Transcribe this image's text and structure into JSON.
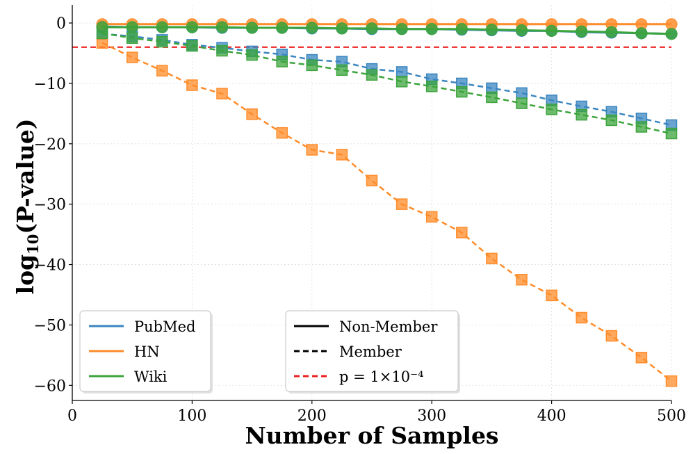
{
  "chart_data": {
    "type": "line",
    "title": "",
    "xlabel": "Number of Samples",
    "ylabel_main": "log",
    "ylabel_sub": "10",
    "ylabel_rest": "(P-value)",
    "xlim": [
      0,
      500
    ],
    "ylim": [
      -62.5,
      3
    ],
    "xticks": [
      0,
      100,
      200,
      300,
      400,
      500
    ],
    "xtick_labels": [
      "0",
      "100",
      "200",
      "300",
      "400",
      "500"
    ],
    "yticks": [
      0,
      -10,
      -20,
      -30,
      -40,
      -50,
      -60
    ],
    "ytick_labels": [
      "0",
      "−10",
      "−20",
      "−30",
      "−40",
      "−50",
      "−60"
    ],
    "grid": true,
    "x": [
      25,
      50,
      75,
      100,
      125,
      150,
      175,
      200,
      225,
      250,
      275,
      300,
      325,
      350,
      375,
      400,
      425,
      450,
      475,
      500
    ],
    "threshold": {
      "label": "p = 1×10⁻⁴",
      "value": -4,
      "color": "#ee2222"
    },
    "datasets_legend": [
      {
        "name": "PubMed",
        "color": "#3a86c0"
      },
      {
        "name": "HN",
        "color": "#ff8c2a"
      },
      {
        "name": "Wiki",
        "color": "#3ca43c"
      }
    ],
    "style_legend": [
      {
        "name": "Non-Member",
        "dash": "solid"
      },
      {
        "name": "Member",
        "dash": "dashed"
      }
    ],
    "series": [
      {
        "name": "PubMed Non-Member",
        "dataset": "PubMed",
        "kind": "non-member",
        "color": "#3a86c0",
        "values": [
          -0.6,
          -0.7,
          -0.7,
          -0.7,
          -0.8,
          -0.8,
          -0.8,
          -0.9,
          -0.9,
          -1.0,
          -1.0,
          -1.0,
          -1.1,
          -1.2,
          -1.3,
          -1.3,
          -1.5,
          -1.6,
          -1.7,
          -1.8
        ]
      },
      {
        "name": "HN Non-Member",
        "dataset": "HN",
        "kind": "non-member",
        "color": "#ff8c2a",
        "values": [
          -0.2,
          -0.2,
          -0.2,
          -0.2,
          -0.2,
          -0.2,
          -0.2,
          -0.2,
          -0.2,
          -0.2,
          -0.2,
          -0.2,
          -0.2,
          -0.2,
          -0.2,
          -0.2,
          -0.2,
          -0.2,
          -0.2,
          -0.2
        ]
      },
      {
        "name": "Wiki Non-Member",
        "dataset": "Wiki",
        "kind": "non-member",
        "color": "#3ca43c",
        "values": [
          -0.7,
          -0.7,
          -0.7,
          -0.7,
          -0.7,
          -0.8,
          -0.8,
          -0.8,
          -0.9,
          -0.9,
          -1.0,
          -1.0,
          -1.0,
          -1.1,
          -1.2,
          -1.3,
          -1.4,
          -1.5,
          -1.7,
          -1.8
        ]
      },
      {
        "name": "PubMed Member",
        "dataset": "PubMed",
        "kind": "member",
        "color": "#3a86c0",
        "values": [
          -1.8,
          -2.2,
          -2.8,
          -3.6,
          -4.1,
          -4.7,
          -5.2,
          -6.1,
          -6.4,
          -7.6,
          -8.1,
          -9.3,
          -10.0,
          -10.8,
          -11.6,
          -12.8,
          -13.8,
          -14.7,
          -15.8,
          -16.9
        ]
      },
      {
        "name": "HN Member",
        "dataset": "HN",
        "kind": "member",
        "color": "#ff8c2a",
        "values": [
          -3.3,
          -5.7,
          -7.9,
          -10.3,
          -11.7,
          -15.1,
          -18.2,
          -21.0,
          -21.8,
          -26.1,
          -30.0,
          -32.1,
          -34.7,
          -39.0,
          -42.5,
          -45.1,
          -48.8,
          -51.8,
          -55.4,
          -59.3
        ]
      },
      {
        "name": "Wiki Member",
        "dataset": "Wiki",
        "kind": "member",
        "color": "#3ca43c",
        "values": [
          -1.7,
          -2.5,
          -3.1,
          -3.8,
          -4.6,
          -5.3,
          -6.4,
          -7.0,
          -7.8,
          -8.6,
          -9.7,
          -10.5,
          -11.4,
          -12.3,
          -13.3,
          -14.3,
          -15.2,
          -16.1,
          -17.2,
          -18.3
        ]
      }
    ]
  }
}
